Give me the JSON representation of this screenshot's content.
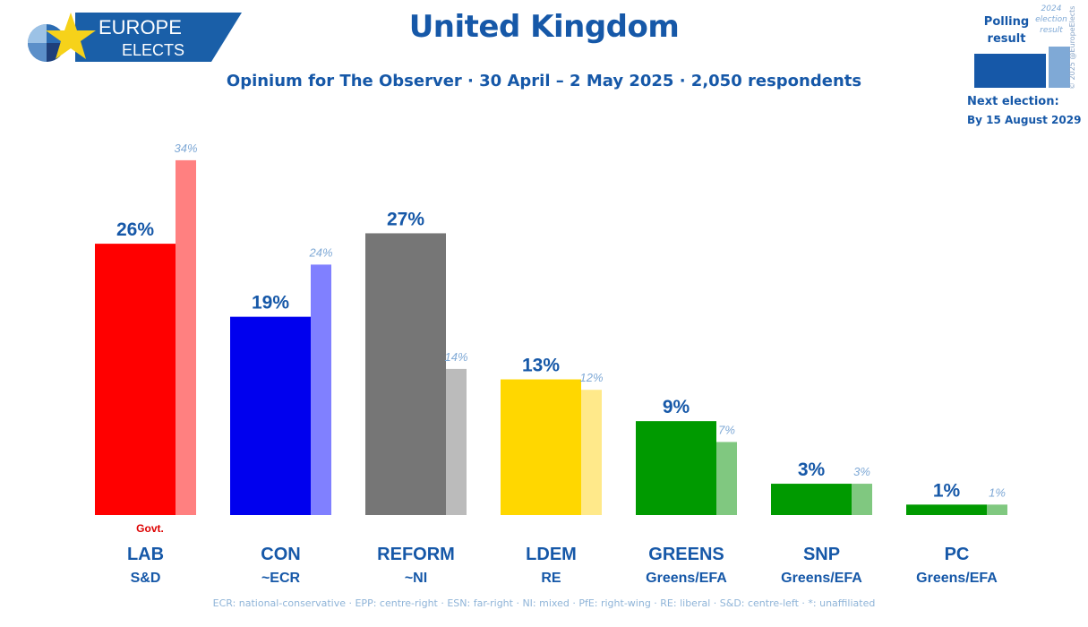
{
  "header": {
    "brand_line1": "EUROPE",
    "brand_line2": "ELECTS",
    "title": "United Kingdom",
    "subtitle": "Opinium for The Observer · 30 April – 2 May 2025 · 2,050 respondents"
  },
  "legend": {
    "current_label_line1": "Polling",
    "current_label_line2": "result",
    "previous_label_line1": "2024",
    "previous_label_line2": "election",
    "previous_label_line3": "result",
    "next_election_label": "Next election:",
    "next_election_date": "By 15 August 2029",
    "copyright": "© 2025 @EuropeElects"
  },
  "footer": {
    "glossary": "ECR: national-conservative · EPP: centre-right · ESN: far-right · NI: mixed · PfE: right-wing · RE: liberal · S&D: centre-left · *: unaffiliated"
  },
  "colors": {
    "accent": "#1658a8",
    "brand_bg": "#1a5fa8",
    "star": "#f6d21a"
  },
  "chart_data": {
    "type": "bar",
    "ylim": [
      0,
      40
    ],
    "categories": [
      "LAB",
      "CON",
      "REFORM",
      "LDEM",
      "GREENS",
      "SNP",
      "PC"
    ],
    "groups": [
      "S&D",
      "~ECR",
      "~NI",
      "RE",
      "Greens/EFA",
      "Greens/EFA",
      "Greens/EFA"
    ],
    "series": [
      {
        "values": [
          26,
          19,
          27,
          13,
          9,
          3,
          1
        ]
      },
      {
        "values": [
          34,
          24,
          14,
          12,
          7,
          3,
          1
        ]
      }
    ],
    "labels_current": [
      "26%",
      "19%",
      "27%",
      "13%",
      "9%",
      "3%",
      "1%"
    ],
    "labels_previous": [
      "34%",
      "24%",
      "14%",
      "12%",
      "7%",
      "3%",
      "1%"
    ],
    "colors_current": [
      "#ff0000",
      "#0000ee",
      "#767676",
      "#ffd700",
      "#009a00",
      "#009a00",
      "#009a00"
    ],
    "colors_previous": [
      "#ff8080",
      "#8080ff",
      "#bbbbbb",
      "#ffe98a",
      "#80c880",
      "#80c880",
      "#80c880"
    ],
    "annotations": [
      {
        "category": "LAB",
        "text": "Govt."
      }
    ],
    "annotation_color": "#dd0000",
    "label_color": "#1658a8",
    "prev_label_color": "#7fa9d6"
  }
}
